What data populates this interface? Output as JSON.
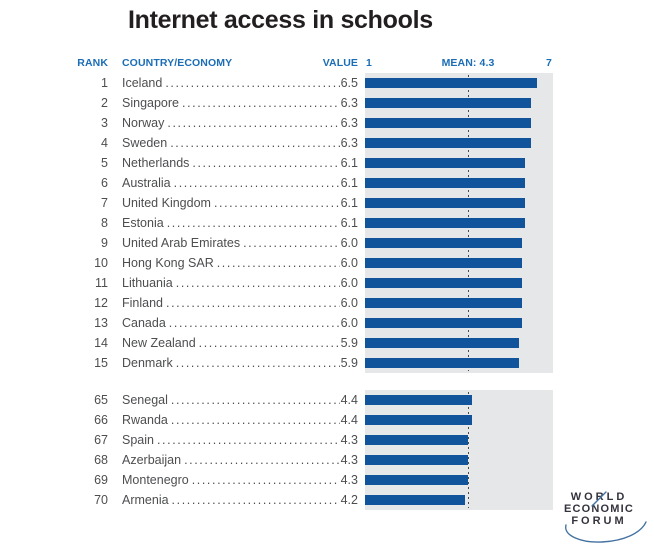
{
  "title": "Internet access in schools",
  "header": {
    "rank": "RANK",
    "country": "COUNTRY/ECONOMY",
    "value": "VALUE",
    "axis_min": "1",
    "mean_label": "MEAN: 4.3",
    "axis_max": "7"
  },
  "colors": {
    "title-text": "#231f20",
    "header-text": "#1b6db5",
    "row-text": "#4d4e50",
    "bar": "#11549b",
    "chart-bg": "#e6e7e8",
    "mean-line": "#4a4a4a",
    "logo-text": "#33333d",
    "logo-arc": "#4272a0"
  },
  "chart_data": {
    "type": "bar",
    "orientation": "horizontal",
    "title": "Internet access in schools",
    "xlabel": "",
    "ylabel": "",
    "xlim": [
      1,
      7
    ],
    "mean": 4.3,
    "mean_label": "MEAN: 4.3",
    "grid": false,
    "legend": false,
    "groups": [
      {
        "name": "top-15",
        "rows": [
          {
            "rank": 1,
            "country": "Iceland",
            "value": 6.5
          },
          {
            "rank": 2,
            "country": "Singapore",
            "value": 6.3
          },
          {
            "rank": 3,
            "country": "Norway",
            "value": 6.3
          },
          {
            "rank": 4,
            "country": "Sweden",
            "value": 6.3
          },
          {
            "rank": 5,
            "country": "Netherlands",
            "value": 6.1
          },
          {
            "rank": 6,
            "country": "Australia",
            "value": 6.1
          },
          {
            "rank": 7,
            "country": "United Kingdom",
            "value": 6.1
          },
          {
            "rank": 8,
            "country": "Estonia",
            "value": 6.1
          },
          {
            "rank": 9,
            "country": "United Arab Emirates",
            "value": 6.0
          },
          {
            "rank": 10,
            "country": "Hong Kong SAR",
            "value": 6.0
          },
          {
            "rank": 11,
            "country": "Lithuania",
            "value": 6.0
          },
          {
            "rank": 12,
            "country": "Finland",
            "value": 6.0
          },
          {
            "rank": 13,
            "country": "Canada",
            "value": 6.0
          },
          {
            "rank": 14,
            "country": "New Zealand",
            "value": 5.9
          },
          {
            "rank": 15,
            "country": "Denmark",
            "value": 5.9
          }
        ]
      },
      {
        "name": "ranks-65-70",
        "rows": [
          {
            "rank": 65,
            "country": "Senegal",
            "value": 4.4
          },
          {
            "rank": 66,
            "country": "Rwanda",
            "value": 4.4
          },
          {
            "rank": 67,
            "country": "Spain",
            "value": 4.3
          },
          {
            "rank": 68,
            "country": "Azerbaijan",
            "value": 4.3
          },
          {
            "rank": 69,
            "country": "Montenegro",
            "value": 4.3
          },
          {
            "rank": 70,
            "country": "Armenia",
            "value": 4.2
          }
        ]
      }
    ]
  },
  "logo": {
    "line1": "WORLD",
    "line2": "ECONOMIC",
    "line3": "FORUM"
  }
}
